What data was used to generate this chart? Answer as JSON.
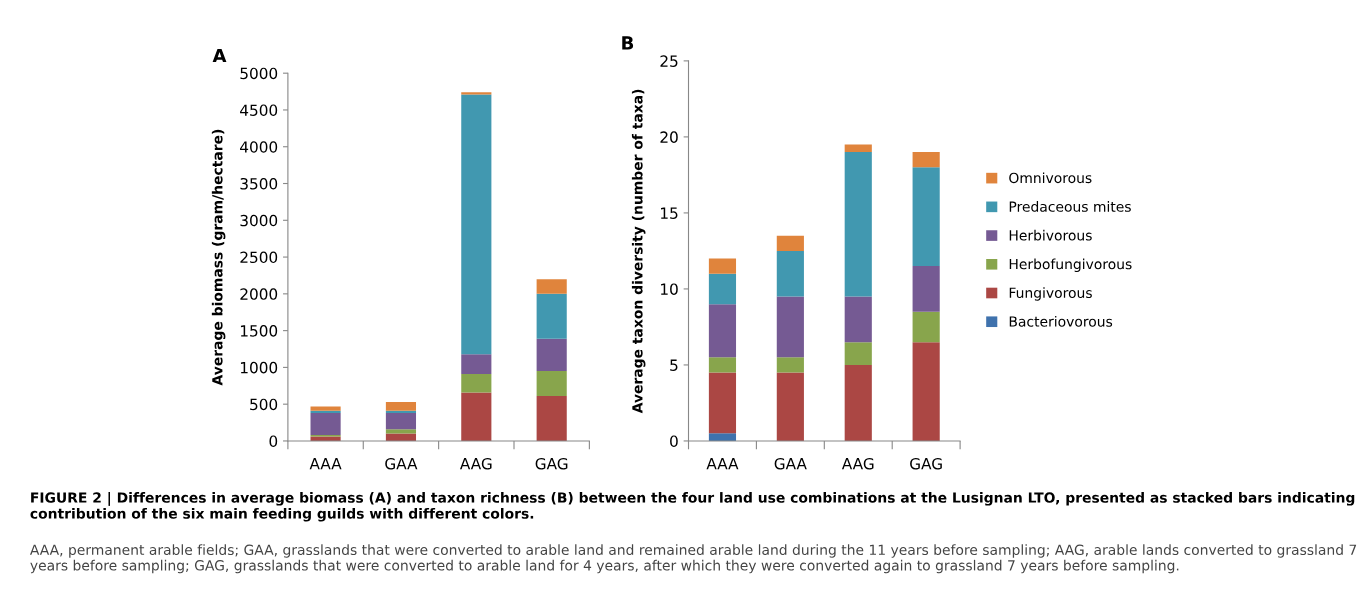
{
  "chart_data": [
    {
      "type": "bar",
      "title": "A",
      "ylabel": "Average biomass (gram/hectare)",
      "categories": [
        "AAA",
        "GAA",
        "AAG",
        "GAG"
      ],
      "stacked": true,
      "ylim": [
        0,
        5000
      ],
      "yticks": [
        0,
        500,
        1000,
        1500,
        2000,
        2500,
        3000,
        3500,
        4000,
        4500,
        5000
      ],
      "grid": false,
      "legend": false,
      "series": [
        {
          "color": "#3f72ad",
          "values": [
            0,
            0,
            0,
            0
          ]
        },
        {
          "color": "#ab4744",
          "values": [
            60,
            100,
            660,
            610
          ]
        },
        {
          "color": "#88a54c",
          "values": [
            20,
            60,
            250,
            340
          ]
        },
        {
          "color": "#755a93",
          "values": [
            300,
            220,
            270,
            440
          ]
        },
        {
          "color": "#4198b0",
          "values": [
            30,
            30,
            3530,
            610
          ]
        },
        {
          "color": "#e0843c",
          "values": [
            60,
            120,
            30,
            200
          ]
        }
      ],
      "annotations": [
        "FIGURE 2 | Differences in average biomass (A) and taxon richness (B) between the four land use combinations at the Lusignan LTO, presented as stacked bars indicating contribution of the six main feeding guilds with different colors.",
        "AAA, permanent arable fields; GAA, grasslands that were converted to arable land and remained arable land during the 11 years before sampling; AAG, arable lands converted to grassland 7 years before sampling; GAG, grasslands that were converted to arable land for 4 years, after which they were converted again to grassland 7 years before sampling."
      ]
    },
    {
      "type": "bar",
      "title": "B",
      "ylabel": "Average taxon diversity (number of taxa)",
      "categories": [
        "AAA",
        "GAA",
        "AAG",
        "GAG"
      ],
      "stacked": true,
      "ylim": [
        0,
        25
      ],
      "yticks": [
        0,
        5,
        10,
        15,
        20,
        25
      ],
      "grid": false,
      "legend": "right",
      "series": [
        {
          "name": "Bacteriovorous",
          "color": "#3f72ad",
          "values": [
            0.5,
            0,
            0,
            0
          ]
        },
        {
          "name": "Fungivorous",
          "color": "#ab4744",
          "values": [
            4,
            4.5,
            5,
            6.5
          ]
        },
        {
          "name": "Herbofungivorous",
          "color": "#88a54c",
          "values": [
            1,
            1,
            1.5,
            2
          ]
        },
        {
          "name": "Herbivorous",
          "color": "#755a93",
          "values": [
            3.5,
            4,
            3,
            3
          ]
        },
        {
          "name": "Predaceous mites",
          "color": "#4198b0",
          "values": [
            2,
            3,
            9.5,
            6.5
          ]
        },
        {
          "name": "Omnivorous",
          "color": "#e0843c",
          "values": [
            1,
            1,
            0.5,
            1
          ]
        }
      ]
    }
  ]
}
